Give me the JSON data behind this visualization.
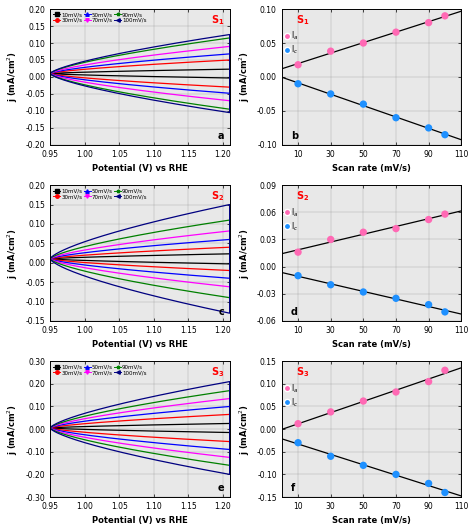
{
  "scan_rates": [
    10,
    30,
    50,
    70,
    90,
    100
  ],
  "S1": {
    "label": "S1",
    "cv_ylim": [
      -0.2,
      0.2
    ],
    "cv_yticks": [
      -0.2,
      -0.15,
      -0.1,
      -0.05,
      0.0,
      0.05,
      0.1,
      0.15,
      0.2
    ],
    "Ia": [
      0.018,
      0.038,
      0.05,
      0.066,
      0.08,
      0.09
    ],
    "Ic": [
      -0.01,
      -0.025,
      -0.04,
      -0.06,
      -0.075,
      -0.085
    ],
    "scatter_ylim": [
      -0.1,
      0.1
    ],
    "scatter_yticks": [
      -0.1,
      -0.05,
      0.0,
      0.05,
      0.1
    ],
    "panel_a": "a",
    "panel_b": "b",
    "cv_colors": [
      "black",
      "red",
      "blue",
      "magenta",
      "green",
      "navy"
    ],
    "cv_amplitudes": [
      0.013,
      0.04,
      0.058,
      0.08,
      0.105,
      0.115
    ],
    "cv_offsets": [
      0.01,
      0.01,
      0.01,
      0.01,
      0.01,
      0.01
    ]
  },
  "S2": {
    "label": "S2",
    "cv_ylim": [
      -0.15,
      0.2
    ],
    "cv_yticks": [
      -0.15,
      -0.1,
      -0.05,
      0.0,
      0.05,
      0.1,
      0.15,
      0.2
    ],
    "Ia": [
      0.016,
      0.03,
      0.038,
      0.042,
      0.052,
      0.058
    ],
    "Ic": [
      -0.01,
      -0.02,
      -0.028,
      -0.035,
      -0.042,
      -0.05
    ],
    "scatter_ylim": [
      -0.06,
      0.09
    ],
    "scatter_yticks": [
      -0.06,
      -0.03,
      0.0,
      0.03,
      0.06,
      0.09
    ],
    "panel_a": "c",
    "panel_b": "d",
    "cv_colors": [
      "black",
      "red",
      "blue",
      "magenta",
      "green",
      "navy"
    ],
    "cv_amplitudes": [
      0.013,
      0.03,
      0.05,
      0.072,
      0.1,
      0.14
    ],
    "cv_offsets": [
      0.01,
      0.01,
      0.01,
      0.01,
      0.01,
      0.01
    ]
  },
  "S3": {
    "label": "S3",
    "cv_ylim": [
      -0.3,
      0.3
    ],
    "cv_yticks": [
      -0.3,
      -0.2,
      -0.1,
      0.0,
      0.1,
      0.2,
      0.3
    ],
    "Ia": [
      0.012,
      0.038,
      0.062,
      0.082,
      0.105,
      0.13
    ],
    "Ic": [
      -0.03,
      -0.06,
      -0.08,
      -0.1,
      -0.12,
      -0.14
    ],
    "scatter_ylim": [
      -0.15,
      0.15
    ],
    "scatter_yticks": [
      -0.15,
      -0.1,
      -0.05,
      0.0,
      0.05,
      0.1,
      0.15
    ],
    "panel_a": "e",
    "panel_b": "f",
    "cv_colors": [
      "black",
      "red",
      "blue",
      "magenta",
      "green",
      "navy"
    ],
    "cv_amplitudes": [
      0.02,
      0.06,
      0.095,
      0.13,
      0.165,
      0.205
    ],
    "cv_offsets": [
      0.005,
      0.005,
      0.005,
      0.005,
      0.005,
      0.005
    ]
  },
  "cv_xlim": [
    0.95,
    1.21
  ],
  "cv_xticks": [
    0.95,
    1.0,
    1.05,
    1.1,
    1.15,
    1.2
  ],
  "scatter_xlim": [
    0,
    110
  ],
  "scatter_xticks": [
    10,
    30,
    50,
    70,
    90,
    110
  ],
  "legend_labels": [
    "10mV/s",
    "30mV/s",
    "50mV/s",
    "70mV/s",
    "90mV/s",
    "100mV/s"
  ],
  "legend_colors": [
    "black",
    "red",
    "blue",
    "magenta",
    "green",
    "navy"
  ],
  "legend_markers": [
    "s",
    "o",
    "^",
    "v",
    "*",
    "<"
  ],
  "background_color": "#e8e8e8"
}
